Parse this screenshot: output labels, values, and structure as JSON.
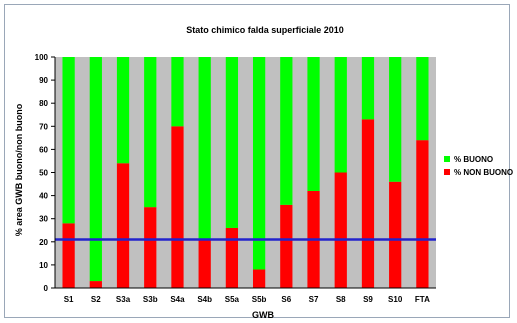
{
  "chart_data": {
    "type": "bar",
    "stacked": true,
    "title": "Stato chimico falda superficiale 2010",
    "xlabel": "GWB",
    "ylabel": "% area GWB buono/non buono",
    "ylim": [
      0,
      100
    ],
    "yticks": [
      0,
      10,
      20,
      30,
      40,
      50,
      60,
      70,
      80,
      90,
      100
    ],
    "grid": false,
    "legend_position": "right",
    "categories": [
      "S1",
      "S2",
      "S3a",
      "S3b",
      "S4a",
      "S4b",
      "S5a",
      "S5b",
      "S6",
      "S7",
      "S8",
      "S9",
      "S10",
      "FTA"
    ],
    "series": [
      {
        "name": "% NON BUONO",
        "color": "#ff0000",
        "values": [
          28,
          3,
          54,
          35,
          70,
          21,
          26,
          8,
          36,
          42,
          50,
          73,
          46,
          64
        ]
      },
      {
        "name": "% BUONO",
        "color": "#00ff00",
        "values": [
          72,
          97,
          46,
          65,
          30,
          79,
          74,
          92,
          64,
          58,
          50,
          27,
          54,
          36
        ]
      }
    ],
    "legend_order": [
      "% BUONO",
      "% NON BUONO"
    ],
    "reference_line": {
      "value": 21,
      "color": "#2222cc"
    },
    "plot_background": "#c0c0c0"
  }
}
